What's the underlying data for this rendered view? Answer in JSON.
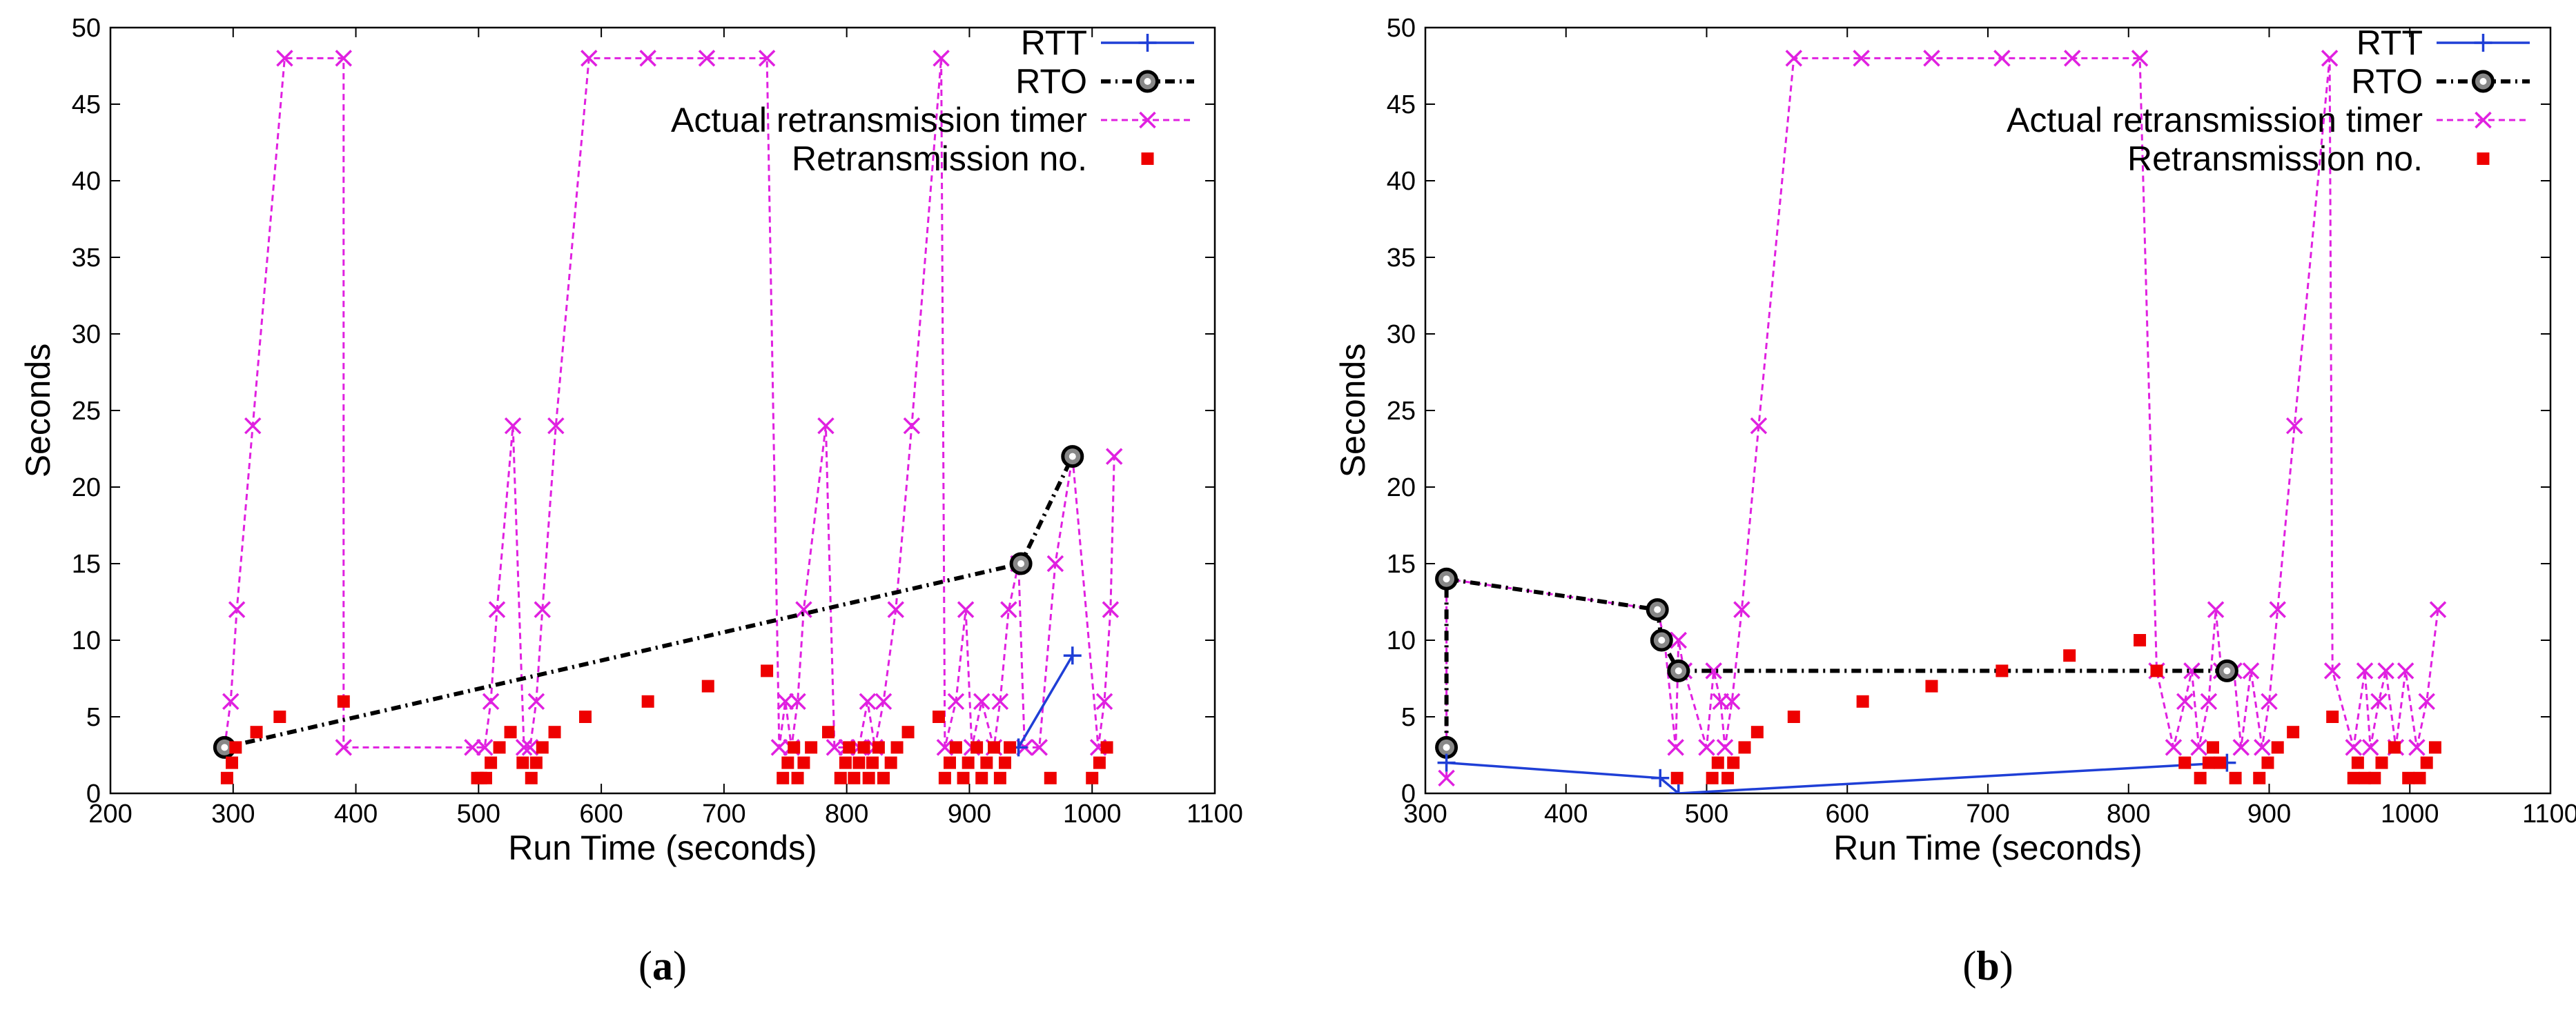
{
  "chart_data": [
    {
      "panel": "(a)",
      "panel_letter": "a",
      "type": "line",
      "title": "",
      "xlabel": "Run Time (seconds)",
      "ylabel": "Seconds",
      "xlim": [
        200,
        1100
      ],
      "ylim": [
        0,
        50
      ],
      "xticks": [
        "200",
        "300",
        "400",
        "500",
        "600",
        "700",
        "800",
        "900",
        "1000",
        "1100"
      ],
      "yticks": [
        "0",
        "5",
        "10",
        "15",
        "20",
        "25",
        "30",
        "35",
        "40",
        "45",
        "50"
      ],
      "legend_position": "top-right",
      "series": [
        {
          "name": "RTT",
          "key": "rtt",
          "color": "#1f3fd6",
          "style": "line-plus",
          "points": [
            [
              940,
              3
            ],
            [
              984,
              9
            ]
          ]
        },
        {
          "name": "RTO",
          "key": "rto",
          "color": "#000000",
          "style": "dashdot-circle",
          "points": [
            [
              293,
              3
            ],
            [
              942,
              15
            ],
            [
              984,
              22
            ]
          ]
        },
        {
          "name": "Actual retransmission timer",
          "key": "timer",
          "color": "#e020e0",
          "style": "dashed-x",
          "points": [
            [
              293,
              3
            ],
            [
              298,
              6
            ],
            [
              303,
              12
            ],
            [
              316,
              24
            ],
            [
              342,
              48
            ],
            [
              390,
              48
            ],
            [
              390,
              3
            ],
            [
              495,
              3
            ],
            [
              505,
              3
            ],
            [
              510,
              6
            ],
            [
              515,
              12
            ],
            [
              528,
              24
            ],
            [
              537,
              3
            ],
            [
              542,
              3
            ],
            [
              547,
              6
            ],
            [
              552,
              12
            ],
            [
              563,
              24
            ],
            [
              590,
              48
            ],
            [
              638,
              48
            ],
            [
              686,
              48
            ],
            [
              735,
              48
            ],
            [
              745,
              3
            ],
            [
              750,
              6
            ],
            [
              755,
              3
            ],
            [
              760,
              6
            ],
            [
              765,
              12
            ],
            [
              783,
              24
            ],
            [
              790,
              3
            ],
            [
              800,
              3
            ],
            [
              810,
              3
            ],
            [
              817,
              6
            ],
            [
              823,
              3
            ],
            [
              830,
              6
            ],
            [
              840,
              12
            ],
            [
              853,
              24
            ],
            [
              877,
              48
            ],
            [
              880,
              3
            ],
            [
              889,
              6
            ],
            [
              897,
              12
            ],
            [
              902,
              3
            ],
            [
              910,
              6
            ],
            [
              920,
              3
            ],
            [
              925,
              6
            ],
            [
              932,
              12
            ],
            [
              940,
              15
            ],
            [
              945,
              3
            ],
            [
              957,
              3
            ],
            [
              970,
              15
            ],
            [
              984,
              22
            ],
            [
              1005,
              3
            ],
            [
              1010,
              6
            ],
            [
              1015,
              12
            ],
            [
              1018,
              22
            ]
          ]
        },
        {
          "name": "Retransmission no.",
          "key": "retx",
          "color": "#ee0000",
          "style": "square",
          "points": [
            [
              295,
              1
            ],
            [
              299,
              2
            ],
            [
              302,
              3
            ],
            [
              319,
              4
            ],
            [
              338,
              5
            ],
            [
              390,
              6
            ],
            [
              499,
              1
            ],
            [
              502,
              1
            ],
            [
              506,
              1
            ],
            [
              510,
              2
            ],
            [
              517,
              3
            ],
            [
              526,
              4
            ],
            [
              536,
              2
            ],
            [
              543,
              1
            ],
            [
              547,
              2
            ],
            [
              552,
              3
            ],
            [
              562,
              4
            ],
            [
              587,
              5
            ],
            [
              638,
              6
            ],
            [
              687,
              7
            ],
            [
              735,
              8
            ],
            [
              748,
              1
            ],
            [
              752,
              2
            ],
            [
              757,
              3
            ],
            [
              760,
              1
            ],
            [
              765,
              2
            ],
            [
              771,
              3
            ],
            [
              785,
              4
            ],
            [
              795,
              1
            ],
            [
              799,
              2
            ],
            [
              802,
              3
            ],
            [
              806,
              1
            ],
            [
              810,
              2
            ],
            [
              814,
              3
            ],
            [
              818,
              1
            ],
            [
              821,
              2
            ],
            [
              826,
              3
            ],
            [
              830,
              1
            ],
            [
              836,
              2
            ],
            [
              841,
              3
            ],
            [
              850,
              4
            ],
            [
              875,
              5
            ],
            [
              880,
              1
            ],
            [
              884,
              2
            ],
            [
              889,
              3
            ],
            [
              895,
              1
            ],
            [
              899,
              2
            ],
            [
              906,
              3
            ],
            [
              910,
              1
            ],
            [
              914,
              2
            ],
            [
              920,
              3
            ],
            [
              925,
              1
            ],
            [
              929,
              2
            ],
            [
              933,
              3
            ],
            [
              966,
              1
            ],
            [
              1000,
              1
            ],
            [
              1006,
              2
            ],
            [
              1012,
              3
            ]
          ]
        }
      ]
    },
    {
      "panel": "(b)",
      "panel_letter": "b",
      "type": "line",
      "title": "",
      "xlabel": "Run Time (seconds)",
      "ylabel": "Seconds",
      "xlim": [
        300,
        1100
      ],
      "ylim": [
        0,
        50
      ],
      "xticks": [
        "300",
        "400",
        "500",
        "600",
        "700",
        "800",
        "900",
        "1000",
        "1100"
      ],
      "yticks": [
        "0",
        "5",
        "10",
        "15",
        "20",
        "25",
        "30",
        "35",
        "40",
        "45",
        "50"
      ],
      "legend_position": "top-right",
      "series": [
        {
          "name": "RTT",
          "key": "rtt",
          "color": "#1f3fd6",
          "style": "line-plus",
          "points": [
            [
              315,
              2
            ],
            [
              467,
              1
            ],
            [
              480,
              0
            ],
            [
              870,
              2
            ]
          ]
        },
        {
          "name": "RTO",
          "key": "rto",
          "color": "#000000",
          "style": "dashdot-circle",
          "points": [
            [
              315,
              3
            ],
            [
              315,
              14
            ],
            [
              465,
              12
            ],
            [
              468,
              10
            ],
            [
              480,
              8
            ],
            [
              870,
              8
            ]
          ]
        },
        {
          "name": "Actual retransmission timer",
          "key": "timer",
          "color": "#e020e0",
          "style": "dashed-x",
          "points": [
            [
              315,
              1
            ],
            [
              315,
              14
            ],
            [
              465,
              12
            ],
            [
              470,
              10
            ],
            [
              478,
              3
            ],
            [
              480,
              10
            ],
            [
              484,
              8
            ],
            [
              500,
              3
            ],
            [
              505,
              8
            ],
            [
              510,
              6
            ],
            [
              513,
              3
            ],
            [
              518,
              6
            ],
            [
              525,
              12
            ],
            [
              537,
              24
            ],
            [
              562,
              48
            ],
            [
              610,
              48
            ],
            [
              660,
              48
            ],
            [
              710,
              48
            ],
            [
              760,
              48
            ],
            [
              808,
              48
            ],
            [
              820,
              8
            ],
            [
              832,
              3
            ],
            [
              840,
              6
            ],
            [
              845,
              8
            ],
            [
              850,
              3
            ],
            [
              857,
              6
            ],
            [
              862,
              12
            ],
            [
              866,
              8
            ],
            [
              875,
              8
            ],
            [
              880,
              3
            ],
            [
              887,
              8
            ],
            [
              895,
              3
            ],
            [
              900,
              6
            ],
            [
              906,
              12
            ],
            [
              918,
              24
            ],
            [
              943,
              48
            ],
            [
              945,
              8
            ],
            [
              960,
              3
            ],
            [
              968,
              8
            ],
            [
              972,
              3
            ],
            [
              978,
              6
            ],
            [
              983,
              8
            ],
            [
              990,
              3
            ],
            [
              997,
              8
            ],
            [
              1005,
              3
            ],
            [
              1012,
              6
            ],
            [
              1020,
              12
            ]
          ]
        },
        {
          "name": "Retransmission no.",
          "key": "retx",
          "color": "#ee0000",
          "style": "square",
          "points": [
            [
              479,
              1
            ],
            [
              504,
              1
            ],
            [
              508,
              2
            ],
            [
              515,
              1
            ],
            [
              519,
              2
            ],
            [
              527,
              3
            ],
            [
              536,
              4
            ],
            [
              562,
              5
            ],
            [
              611,
              6
            ],
            [
              660,
              7
            ],
            [
              710,
              8
            ],
            [
              758,
              9
            ],
            [
              808,
              10
            ],
            [
              820,
              8
            ],
            [
              840,
              2
            ],
            [
              851,
              1
            ],
            [
              857,
              2
            ],
            [
              860,
              3
            ],
            [
              865,
              2
            ],
            [
              876,
              1
            ],
            [
              893,
              1
            ],
            [
              899,
              2
            ],
            [
              906,
              3
            ],
            [
              917,
              4
            ],
            [
              945,
              5
            ],
            [
              960,
              1
            ],
            [
              963,
              2
            ],
            [
              968,
              1
            ],
            [
              975,
              1
            ],
            [
              980,
              2
            ],
            [
              989,
              3
            ],
            [
              999,
              1
            ],
            [
              1007,
              1
            ],
            [
              1012,
              2
            ],
            [
              1018,
              3
            ]
          ]
        }
      ]
    }
  ]
}
